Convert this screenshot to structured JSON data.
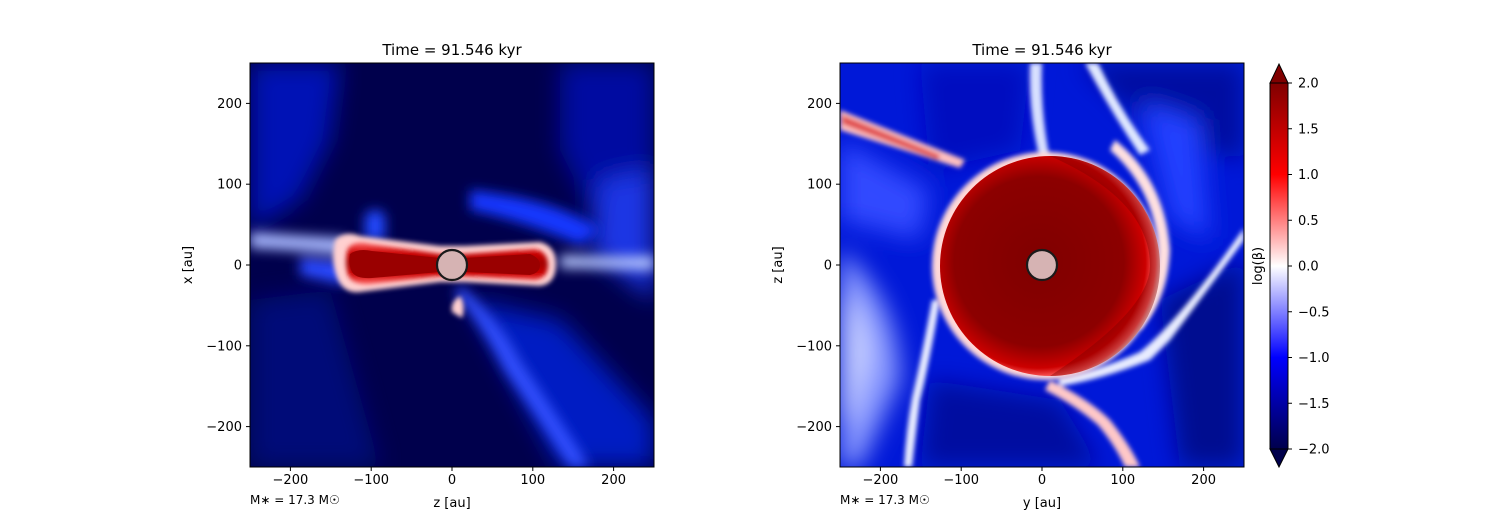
{
  "chart_data": [
    {
      "type": "heatmap",
      "title": "Time = 91.546 kyr",
      "xlabel": "z [au]",
      "ylabel": "x [au]",
      "xlim": [
        -250,
        250
      ],
      "ylim": [
        -250,
        250
      ],
      "xticks": [
        -200,
        -100,
        0,
        100,
        200
      ],
      "yticks": [
        -200,
        -100,
        0,
        100,
        200
      ],
      "annotation": "M∗ = 17.3 M☉",
      "features": {
        "background_level": -1.9,
        "disk": {
          "extent_x": [
            -130,
            110
          ],
          "half_thickness": 20,
          "level": 1.9
        },
        "sink_radius": 18
      }
    },
    {
      "type": "heatmap",
      "title": "Time = 91.546 kyr",
      "xlabel": "y [au]",
      "ylabel": "z [au]",
      "xlim": [
        -250,
        250
      ],
      "ylim": [
        -250,
        250
      ],
      "xticks": [
        -200,
        -100,
        0,
        100,
        200
      ],
      "yticks": [
        -200,
        -100,
        0,
        100,
        200
      ],
      "annotation": "M∗ = 17.3 M☉",
      "features": {
        "background_level": -1.3,
        "bubble": {
          "center": [
            10,
            0
          ],
          "radius": 130,
          "level": 1.9
        },
        "sink_radius": 18
      }
    }
  ],
  "colorbar": {
    "label": "log(β)",
    "range": [
      -2.0,
      2.0
    ],
    "ticks": [
      "−2.0",
      "−1.5",
      "−1.0",
      "−0.5",
      "0.0",
      "0.5",
      "1.0",
      "1.5",
      "2.0"
    ],
    "tick_values": [
      -2.0,
      -1.5,
      -1.0,
      -0.5,
      0.0,
      0.5,
      1.0,
      1.5,
      2.0
    ],
    "colormap": "seismic",
    "colors": {
      "low": "#00004c",
      "mid_low": "#0000ff",
      "center": "#ffffff",
      "mid_high": "#ff0000",
      "high": "#800000"
    },
    "extend": "both"
  }
}
